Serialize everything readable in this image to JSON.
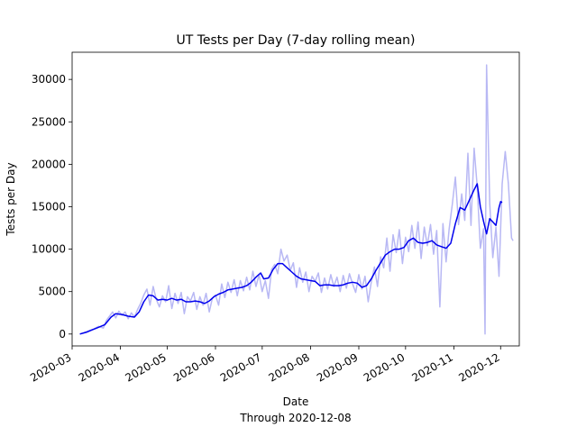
{
  "chart_data": {
    "type": "line",
    "title": "UT Tests per Day (7-day rolling mean)",
    "xlabel": "Date",
    "xlabel_sub": "Through 2020-12-08",
    "ylabel": "Tests per Day",
    "xlim": [
      "2020-03-01",
      "2020-12-13"
    ],
    "ylim": [
      -1400,
      33200
    ],
    "x_ticks": [
      "2020-03-01",
      "2020-04-01",
      "2020-05-01",
      "2020-06-01",
      "2020-07-01",
      "2020-08-01",
      "2020-09-01",
      "2020-10-01",
      "2020-11-01",
      "2020-12-01"
    ],
    "x_tick_labels": [
      "2020-03",
      "2020-04",
      "2020-05",
      "2020-06",
      "2020-07",
      "2020-08",
      "2020-09",
      "2020-10",
      "2020-11",
      "2020-12"
    ],
    "y_ticks": [
      0,
      5000,
      10000,
      15000,
      20000,
      25000,
      30000
    ],
    "y_tick_labels": [
      "0",
      "5000",
      "10000",
      "15000",
      "20000",
      "25000",
      "30000"
    ],
    "grid": false,
    "legend": false,
    "colors": {
      "daily": "#b8b8f4",
      "rolling": "#0000ee"
    },
    "series": [
      {
        "values": [
          [
            "2020-03-06",
            0
          ],
          [
            "2020-03-09",
            200
          ],
          [
            "2020-03-12",
            400
          ],
          [
            "2020-03-15",
            600
          ],
          [
            "2020-03-18",
            900
          ],
          [
            "2020-03-21",
            700
          ],
          [
            "2020-03-23",
            1600
          ],
          [
            "2020-03-25",
            2100
          ],
          [
            "2020-03-27",
            2600
          ],
          [
            "2020-03-29",
            1900
          ],
          [
            "2020-03-31",
            2700
          ],
          [
            "2020-04-02",
            2200
          ],
          [
            "2020-04-04",
            2600
          ],
          [
            "2020-04-06",
            1800
          ],
          [
            "2020-04-08",
            2500
          ],
          [
            "2020-04-10",
            2000
          ],
          [
            "2020-04-12",
            2900
          ],
          [
            "2020-04-14",
            3600
          ],
          [
            "2020-04-16",
            4600
          ],
          [
            "2020-04-18",
            5300
          ],
          [
            "2020-04-20",
            3400
          ],
          [
            "2020-04-22",
            5600
          ],
          [
            "2020-04-24",
            4100
          ],
          [
            "2020-04-26",
            3200
          ],
          [
            "2020-04-28",
            4500
          ],
          [
            "2020-04-30",
            3800
          ],
          [
            "2020-05-02",
            5700
          ],
          [
            "2020-05-04",
            3000
          ],
          [
            "2020-05-06",
            4800
          ],
          [
            "2020-05-08",
            3600
          ],
          [
            "2020-05-10",
            4900
          ],
          [
            "2020-05-12",
            2400
          ],
          [
            "2020-05-14",
            4400
          ],
          [
            "2020-05-16",
            3900
          ],
          [
            "2020-05-18",
            4900
          ],
          [
            "2020-05-20",
            2900
          ],
          [
            "2020-05-22",
            4400
          ],
          [
            "2020-05-24",
            3400
          ],
          [
            "2020-05-26",
            4800
          ],
          [
            "2020-05-28",
            2600
          ],
          [
            "2020-05-30",
            4200
          ],
          [
            "2020-06-01",
            4600
          ],
          [
            "2020-06-03",
            3400
          ],
          [
            "2020-06-05",
            5900
          ],
          [
            "2020-06-07",
            4300
          ],
          [
            "2020-06-09",
            6100
          ],
          [
            "2020-06-11",
            4900
          ],
          [
            "2020-06-13",
            6400
          ],
          [
            "2020-06-15",
            4500
          ],
          [
            "2020-06-17",
            6300
          ],
          [
            "2020-06-19",
            5100
          ],
          [
            "2020-06-21",
            6700
          ],
          [
            "2020-06-23",
            5200
          ],
          [
            "2020-06-25",
            7400
          ],
          [
            "2020-06-27",
            5600
          ],
          [
            "2020-06-29",
            7000
          ],
          [
            "2020-07-01",
            5000
          ],
          [
            "2020-07-03",
            6300
          ],
          [
            "2020-07-05",
            4200
          ],
          [
            "2020-07-07",
            7600
          ],
          [
            "2020-07-09",
            8200
          ],
          [
            "2020-07-11",
            7100
          ],
          [
            "2020-07-13",
            10000
          ],
          [
            "2020-07-15",
            8600
          ],
          [
            "2020-07-17",
            9300
          ],
          [
            "2020-07-19",
            7500
          ],
          [
            "2020-07-21",
            8400
          ],
          [
            "2020-07-23",
            5500
          ],
          [
            "2020-07-25",
            7800
          ],
          [
            "2020-07-27",
            6100
          ],
          [
            "2020-07-29",
            7300
          ],
          [
            "2020-07-31",
            5000
          ],
          [
            "2020-08-02",
            6800
          ],
          [
            "2020-08-04",
            6200
          ],
          [
            "2020-08-06",
            7200
          ],
          [
            "2020-08-08",
            4900
          ],
          [
            "2020-08-10",
            6600
          ],
          [
            "2020-08-12",
            5300
          ],
          [
            "2020-08-14",
            7000
          ],
          [
            "2020-08-16",
            5600
          ],
          [
            "2020-08-18",
            6700
          ],
          [
            "2020-08-20",
            5000
          ],
          [
            "2020-08-22",
            6900
          ],
          [
            "2020-08-24",
            5400
          ],
          [
            "2020-08-26",
            7100
          ],
          [
            "2020-08-28",
            5900
          ],
          [
            "2020-08-30",
            4900
          ],
          [
            "2020-09-01",
            7000
          ],
          [
            "2020-09-03",
            5300
          ],
          [
            "2020-09-05",
            6800
          ],
          [
            "2020-09-07",
            3800
          ],
          [
            "2020-09-09",
            6100
          ],
          [
            "2020-09-11",
            7900
          ],
          [
            "2020-09-13",
            5600
          ],
          [
            "2020-09-15",
            9100
          ],
          [
            "2020-09-17",
            7800
          ],
          [
            "2020-09-19",
            11300
          ],
          [
            "2020-09-21",
            7400
          ],
          [
            "2020-09-23",
            11700
          ],
          [
            "2020-09-25",
            9600
          ],
          [
            "2020-09-27",
            12300
          ],
          [
            "2020-09-29",
            8300
          ],
          [
            "2020-10-01",
            11400
          ],
          [
            "2020-10-03",
            9700
          ],
          [
            "2020-10-05",
            12800
          ],
          [
            "2020-10-07",
            10100
          ],
          [
            "2020-10-09",
            13200
          ],
          [
            "2020-10-11",
            8900
          ],
          [
            "2020-10-13",
            12600
          ],
          [
            "2020-10-15",
            10400
          ],
          [
            "2020-10-17",
            12900
          ],
          [
            "2020-10-19",
            9400
          ],
          [
            "2020-10-21",
            12200
          ],
          [
            "2020-10-23",
            3200
          ],
          [
            "2020-10-25",
            13000
          ],
          [
            "2020-10-27",
            8500
          ],
          [
            "2020-10-29",
            12400
          ],
          [
            "2020-10-31",
            15300
          ],
          [
            "2020-11-02",
            18500
          ],
          [
            "2020-11-04",
            12900
          ],
          [
            "2020-11-06",
            16500
          ],
          [
            "2020-11-08",
            13400
          ],
          [
            "2020-11-10",
            21300
          ],
          [
            "2020-11-12",
            12800
          ],
          [
            "2020-11-14",
            21900
          ],
          [
            "2020-11-16",
            17400
          ],
          [
            "2020-11-18",
            10100
          ],
          [
            "2020-11-20",
            12400
          ],
          [
            "2020-11-21",
            0
          ],
          [
            "2020-11-22",
            31700
          ],
          [
            "2020-11-24",
            15400
          ],
          [
            "2020-11-26",
            9000
          ],
          [
            "2020-11-28",
            12600
          ],
          [
            "2020-11-30",
            6800
          ],
          [
            "2020-12-02",
            17700
          ],
          [
            "2020-12-04",
            21500
          ],
          [
            "2020-12-06",
            17700
          ],
          [
            "2020-12-08",
            11300
          ],
          [
            "2020-12-09",
            11000
          ]
        ]
      },
      {
        "values": [
          [
            "2020-03-06",
            0
          ],
          [
            "2020-03-10",
            200
          ],
          [
            "2020-03-14",
            500
          ],
          [
            "2020-03-18",
            800
          ],
          [
            "2020-03-22",
            1100
          ],
          [
            "2020-03-26",
            2000
          ],
          [
            "2020-03-29",
            2400
          ],
          [
            "2020-04-02",
            2300
          ],
          [
            "2020-04-06",
            2100
          ],
          [
            "2020-04-10",
            2000
          ],
          [
            "2020-04-13",
            2600
          ],
          [
            "2020-04-16",
            3800
          ],
          [
            "2020-04-19",
            4600
          ],
          [
            "2020-04-22",
            4500
          ],
          [
            "2020-04-25",
            4000
          ],
          [
            "2020-04-28",
            4100
          ],
          [
            "2020-05-01",
            4000
          ],
          [
            "2020-05-04",
            4200
          ],
          [
            "2020-05-07",
            4000
          ],
          [
            "2020-05-10",
            4100
          ],
          [
            "2020-05-13",
            3800
          ],
          [
            "2020-05-16",
            3800
          ],
          [
            "2020-05-19",
            3900
          ],
          [
            "2020-05-22",
            3800
          ],
          [
            "2020-05-25",
            3600
          ],
          [
            "2020-05-28",
            3900
          ],
          [
            "2020-05-31",
            4400
          ],
          [
            "2020-06-03",
            4700
          ],
          [
            "2020-06-06",
            4900
          ],
          [
            "2020-06-09",
            5200
          ],
          [
            "2020-06-12",
            5300
          ],
          [
            "2020-06-15",
            5400
          ],
          [
            "2020-06-18",
            5500
          ],
          [
            "2020-06-21",
            5700
          ],
          [
            "2020-06-24",
            6100
          ],
          [
            "2020-06-27",
            6700
          ],
          [
            "2020-06-30",
            7200
          ],
          [
            "2020-07-02",
            6500
          ],
          [
            "2020-07-05",
            6600
          ],
          [
            "2020-07-08",
            7600
          ],
          [
            "2020-07-11",
            8300
          ],
          [
            "2020-07-14",
            8300
          ],
          [
            "2020-07-17",
            7800
          ],
          [
            "2020-07-20",
            7300
          ],
          [
            "2020-07-23",
            6800
          ],
          [
            "2020-07-26",
            6500
          ],
          [
            "2020-07-29",
            6400
          ],
          [
            "2020-08-01",
            6300
          ],
          [
            "2020-08-04",
            6200
          ],
          [
            "2020-08-07",
            5700
          ],
          [
            "2020-08-10",
            5800
          ],
          [
            "2020-08-13",
            5800
          ],
          [
            "2020-08-16",
            5700
          ],
          [
            "2020-08-19",
            5700
          ],
          [
            "2020-08-22",
            5800
          ],
          [
            "2020-08-25",
            6000
          ],
          [
            "2020-08-28",
            6100
          ],
          [
            "2020-08-31",
            6000
          ],
          [
            "2020-09-03",
            5500
          ],
          [
            "2020-09-06",
            5700
          ],
          [
            "2020-09-09",
            6500
          ],
          [
            "2020-09-12",
            7500
          ],
          [
            "2020-09-15",
            8400
          ],
          [
            "2020-09-18",
            9300
          ],
          [
            "2020-09-21",
            9700
          ],
          [
            "2020-09-24",
            10000
          ],
          [
            "2020-09-27",
            10000
          ],
          [
            "2020-09-30",
            10200
          ],
          [
            "2020-10-03",
            11000
          ],
          [
            "2020-10-06",
            11300
          ],
          [
            "2020-10-09",
            10800
          ],
          [
            "2020-10-12",
            10700
          ],
          [
            "2020-10-15",
            10800
          ],
          [
            "2020-10-18",
            11000
          ],
          [
            "2020-10-21",
            10500
          ],
          [
            "2020-10-24",
            10300
          ],
          [
            "2020-10-27",
            10100
          ],
          [
            "2020-10-30",
            10700
          ],
          [
            "2020-11-02",
            13000
          ],
          [
            "2020-11-05",
            14900
          ],
          [
            "2020-11-08",
            14600
          ],
          [
            "2020-11-11",
            15800
          ],
          [
            "2020-11-14",
            17000
          ],
          [
            "2020-11-16",
            17700
          ],
          [
            "2020-11-18",
            15000
          ],
          [
            "2020-11-20",
            13300
          ],
          [
            "2020-11-22",
            11800
          ],
          [
            "2020-11-24",
            13600
          ],
          [
            "2020-11-26",
            13200
          ],
          [
            "2020-11-28",
            12800
          ],
          [
            "2020-11-30",
            14900
          ],
          [
            "2020-12-01",
            15600
          ],
          [
            "2020-12-02",
            15500
          ]
        ]
      }
    ]
  }
}
